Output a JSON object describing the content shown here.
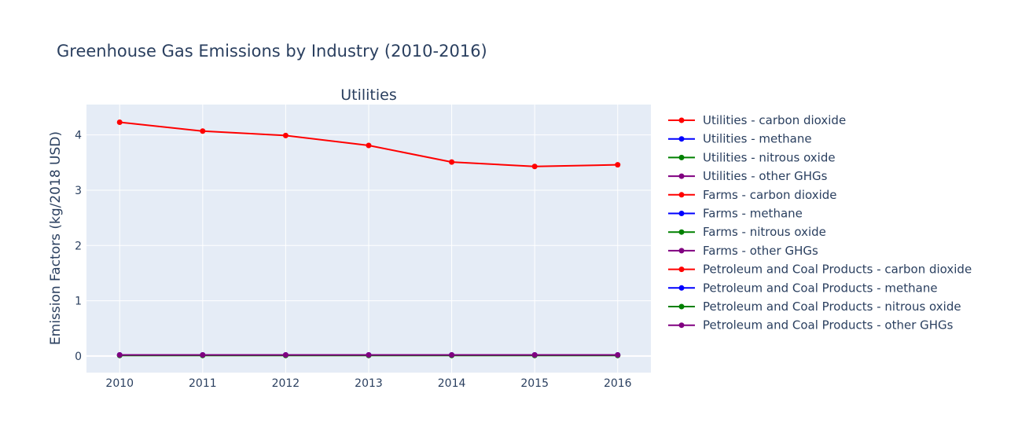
{
  "chart_data": {
    "type": "line",
    "title": "Greenhouse Gas Emissions by Industry (2010-2016)",
    "subplot_title": "Utilities",
    "xlabel": "",
    "ylabel": "Emission Factors (kg/2018 USD)",
    "x": [
      "2010",
      "2011",
      "2012",
      "2013",
      "2014",
      "2015",
      "2016"
    ],
    "xlim": [
      2009.6,
      2016.4
    ],
    "ylim": [
      -0.3,
      4.55
    ],
    "yticks": [
      0,
      1,
      2,
      3,
      4
    ],
    "grid": true,
    "legend_position": "right",
    "background": "#e5ecf6",
    "series": [
      {
        "name": "Utilities - carbon dioxide",
        "color": "#ff0000",
        "values": [
          4.23,
          4.07,
          3.99,
          3.81,
          3.51,
          3.43,
          3.46
        ]
      },
      {
        "name": "Utilities - methane",
        "color": "#0000ff",
        "values": [
          0.02,
          0.02,
          0.02,
          0.02,
          0.02,
          0.02,
          0.02
        ]
      },
      {
        "name": "Utilities - nitrous oxide",
        "color": "#008000",
        "values": [
          0.01,
          0.01,
          0.01,
          0.01,
          0.01,
          0.01,
          0.01
        ]
      },
      {
        "name": "Utilities - other GHGs",
        "color": "#800080",
        "values": [
          0.02,
          0.02,
          0.02,
          0.02,
          0.02,
          0.02,
          0.02
        ]
      },
      {
        "name": "Farms - carbon dioxide",
        "color": "#ff0000",
        "values": [
          null,
          null,
          null,
          null,
          null,
          null,
          null
        ]
      },
      {
        "name": "Farms - methane",
        "color": "#0000ff",
        "values": [
          null,
          null,
          null,
          null,
          null,
          null,
          null
        ]
      },
      {
        "name": "Farms - nitrous oxide",
        "color": "#008000",
        "values": [
          null,
          null,
          null,
          null,
          null,
          null,
          null
        ]
      },
      {
        "name": "Farms - other GHGs",
        "color": "#800080",
        "values": [
          null,
          null,
          null,
          null,
          null,
          null,
          null
        ]
      },
      {
        "name": "Petroleum and Coal Products - carbon dioxide",
        "color": "#ff0000",
        "values": [
          null,
          null,
          null,
          null,
          null,
          null,
          null
        ]
      },
      {
        "name": "Petroleum and Coal Products - methane",
        "color": "#0000ff",
        "values": [
          null,
          null,
          null,
          null,
          null,
          null,
          null
        ]
      },
      {
        "name": "Petroleum and Coal Products - nitrous oxide",
        "color": "#008000",
        "values": [
          null,
          null,
          null,
          null,
          null,
          null,
          null
        ]
      },
      {
        "name": "Petroleum and Coal Products - other GHGs",
        "color": "#800080",
        "values": [
          null,
          null,
          null,
          null,
          null,
          null,
          null
        ]
      }
    ]
  }
}
